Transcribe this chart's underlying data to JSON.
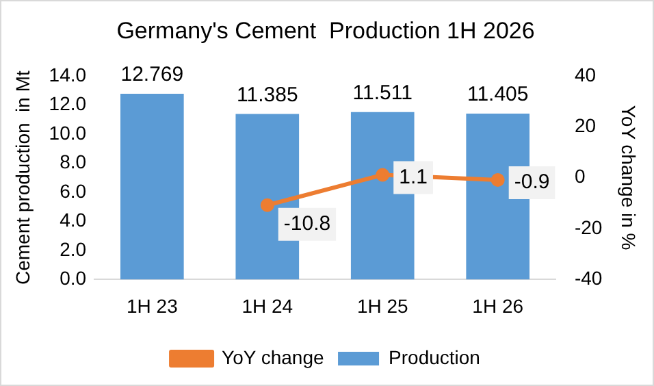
{
  "chart_data": {
    "type": "bar",
    "title": "Germany's Cement  Production 1H 2026",
    "ylabel": "Cement production  in Mt",
    "y2label": "YoY change in %",
    "categories": [
      "1H 23",
      "1H 24",
      "1H 25",
      "1H 26"
    ],
    "series": [
      {
        "name": "Production",
        "color": "#5b9bd5",
        "values": [
          12.769,
          11.385,
          11.511,
          11.405
        ]
      },
      {
        "name": "YoY change",
        "type": "line",
        "axis": "y2",
        "color": "#ed7d31",
        "values": [
          null,
          -10.8,
          1.1,
          -0.9
        ]
      }
    ],
    "ylim": [
      0,
      14
    ],
    "yticks": [
      {
        "value": 0,
        "label": "0.0"
      },
      {
        "value": 2,
        "label": "2.0"
      },
      {
        "value": 4,
        "label": "4.0"
      },
      {
        "value": 6,
        "label": "6.0"
      },
      {
        "value": 8,
        "label": "8.0"
      },
      {
        "value": 10,
        "label": "10.0"
      },
      {
        "value": 12,
        "label": "12.0"
      },
      {
        "value": 14,
        "label": "14.0"
      }
    ],
    "y2lim": [
      -40,
      40
    ],
    "y2ticks": [
      -40,
      -20,
      0,
      20,
      40
    ],
    "data_labels": true,
    "grid": false,
    "legend": "bottom",
    "marker": "circle",
    "line_style": "solid"
  }
}
